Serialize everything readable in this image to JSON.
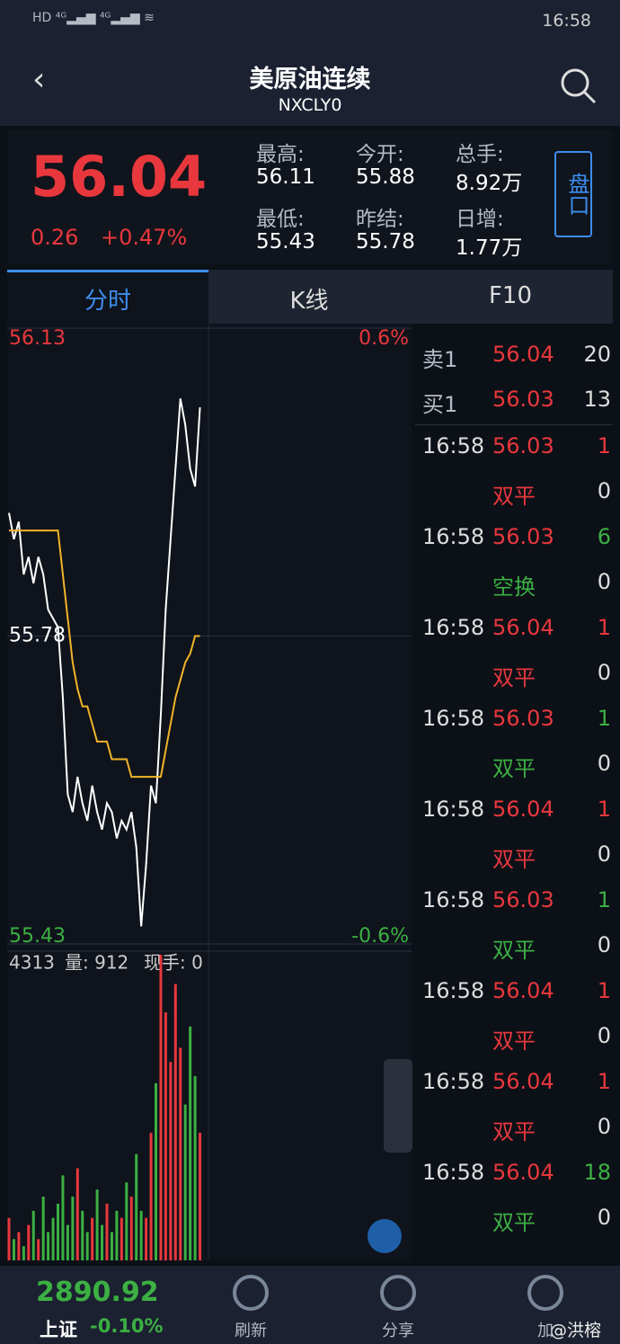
{
  "status": {
    "time": "16:58"
  },
  "header": {
    "title": "美原油连续",
    "code": "NXCLY0"
  },
  "quote": {
    "price": "56.04",
    "change": "0.26",
    "pct": "+0.47%",
    "stats": [
      {
        "label": "最高:",
        "value": "56.11"
      },
      {
        "label": "今开:",
        "value": "55.88"
      },
      {
        "label": "总手:",
        "value": "8.92万"
      },
      {
        "label": "最低:",
        "value": "55.43"
      },
      {
        "label": "昨结:",
        "value": "55.78"
      },
      {
        "label": "日增:",
        "value": "1.77万"
      }
    ],
    "pan": "盘口"
  },
  "tabs": [
    "分时",
    "K线",
    "F10"
  ],
  "chart_data": [
    {
      "type": "line",
      "ylim": [
        55.43,
        56.13
      ],
      "yticks": [
        56.13,
        55.78,
        55.43
      ],
      "y2lim": [
        -0.63,
        0.63
      ],
      "y2ticks": [
        {
          "value": 0.63,
          "label": "0.6%"
        },
        {
          "value": -0.63,
          "label": "-0.6%"
        }
      ],
      "series": [
        {
          "color": "#ffffff",
          "values": [
            55.92,
            55.89,
            55.91,
            55.85,
            55.87,
            55.84,
            55.87,
            55.85,
            55.81,
            55.8,
            55.79,
            55.71,
            55.6,
            55.58,
            55.62,
            55.59,
            55.57,
            55.61,
            55.58,
            55.56,
            55.59,
            55.58,
            55.55,
            55.57,
            55.56,
            55.58,
            55.54,
            55.45,
            55.52,
            55.61,
            55.59,
            55.69,
            55.81,
            55.89,
            55.97,
            56.05,
            56.02,
            55.97,
            55.95,
            56.04
          ]
        },
        {
          "color": "#f0b429",
          "values": [
            55.9,
            55.9,
            55.9,
            55.9,
            55.9,
            55.9,
            55.9,
            55.9,
            55.9,
            55.9,
            55.9,
            55.85,
            55.8,
            55.75,
            55.72,
            55.7,
            55.7,
            55.68,
            55.66,
            55.66,
            55.66,
            55.64,
            55.64,
            55.64,
            55.64,
            55.62,
            55.62,
            55.62,
            55.62,
            55.62,
            55.62,
            55.62,
            55.65,
            55.68,
            55.71,
            55.73,
            55.75,
            55.76,
            55.78,
            55.78
          ]
        }
      ]
    },
    {
      "type": "bar",
      "ylim": [
        0,
        4313
      ],
      "yticks": [
        4313
      ],
      "volume_label": "量: 912",
      "hand_label": "现手: 0",
      "up_color": "#e8383d",
      "down_color": "#3cb043",
      "values": [
        600,
        300,
        400,
        200,
        500,
        700,
        300,
        900,
        400,
        600,
        800,
        1200,
        500,
        900,
        1300,
        700,
        400,
        600,
        1000,
        500,
        800,
        400,
        700,
        600,
        1100,
        900,
        1500,
        700,
        600,
        1800,
        2500,
        4313,
        3500,
        2800,
        3900,
        3000,
        2200,
        3300,
        2600,
        1800
      ]
    }
  ],
  "book": [
    {
      "side": "卖1",
      "price": "56.04",
      "qty": "20"
    },
    {
      "side": "买1",
      "price": "56.03",
      "qty": "13"
    }
  ],
  "trades": [
    {
      "time": "16:58",
      "price": "56.03",
      "qty": "1",
      "type": "双平",
      "oi": "0",
      "color": "#e8383d"
    },
    {
      "time": "16:58",
      "price": "56.03",
      "qty": "6",
      "type": "空换",
      "oi": "0",
      "color": "#3cb043"
    },
    {
      "time": "16:58",
      "price": "56.04",
      "qty": "1",
      "type": "双平",
      "oi": "0",
      "color": "#e8383d"
    },
    {
      "time": "16:58",
      "price": "56.03",
      "qty": "1",
      "type": "双平",
      "oi": "0",
      "color": "#3cb043"
    },
    {
      "time": "16:58",
      "price": "56.04",
      "qty": "1",
      "type": "双平",
      "oi": "0",
      "color": "#e8383d"
    },
    {
      "time": "16:58",
      "price": "56.03",
      "qty": "1",
      "type": "双平",
      "oi": "0",
      "color": "#3cb043"
    },
    {
      "time": "16:58",
      "price": "56.04",
      "qty": "1",
      "type": "双平",
      "oi": "0",
      "color": "#e8383d"
    },
    {
      "time": "16:58",
      "price": "56.04",
      "qty": "1",
      "type": "双平",
      "oi": "0",
      "color": "#e8383d"
    },
    {
      "time": "16:58",
      "price": "56.04",
      "qty": "18",
      "type": "双平",
      "oi": "0",
      "color": "#3cb043"
    }
  ],
  "footer": {
    "index_value": "2890.92",
    "index_name": "上证",
    "index_pct": "-0.10%",
    "buttons": [
      "刷新",
      "分享",
      "加"
    ],
    "watermark": "@洪榕"
  }
}
